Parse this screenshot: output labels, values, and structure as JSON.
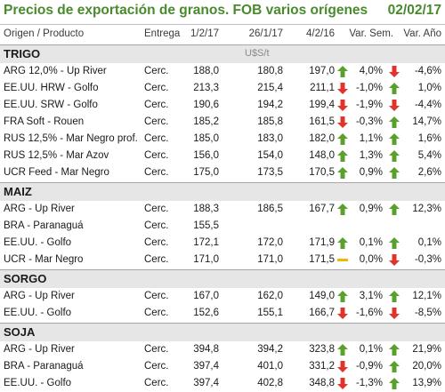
{
  "header": {
    "title": "Precios de exportación de granos. FOB varios orígenes",
    "date": "02/02/17"
  },
  "columns": {
    "product": "Origen / Producto",
    "delivery": "Entrega",
    "d1": "1/2/17",
    "d2": "26/1/17",
    "d3": "4/2/16",
    "var_sem": "Var. Sem.",
    "var_anio": "Var. Año"
  },
  "colors": {
    "title": "#4a8a2f",
    "up": "#5aa02c",
    "down": "#e0332b",
    "flat": "#f2b800",
    "section_bg": "#e6e6e6"
  },
  "sections": [
    {
      "name": "TRIGO",
      "unit": "U$S/t",
      "rows": [
        {
          "product": "ARG 12,0% - Up River",
          "delivery": "Cerc.",
          "d1": "188,0",
          "d2": "180,8",
          "d3": "197,0",
          "icon3": "up-arrow-icon",
          "var_sem": "4,0%",
          "icon4": "down-arrow-icon",
          "var_anio": "-4,6%"
        },
        {
          "product": "EE.UU. HRW - Golfo",
          "delivery": "Cerc.",
          "d1": "213,3",
          "d2": "215,4",
          "d3": "211,1",
          "icon3": "down-arrow-icon",
          "var_sem": "-1,0%",
          "icon4": "up-arrow-icon",
          "var_anio": "1,0%"
        },
        {
          "product": "EE.UU. SRW - Golfo",
          "delivery": "Cerc.",
          "d1": "190,6",
          "d2": "194,2",
          "d3": "199,4",
          "icon3": "down-arrow-icon",
          "var_sem": "-1,9%",
          "icon4": "down-arrow-icon",
          "var_anio": "-4,4%"
        },
        {
          "product": "FRA Soft - Rouen",
          "delivery": "Cerc.",
          "d1": "185,2",
          "d2": "185,8",
          "d3": "161,5",
          "icon3": "down-arrow-icon",
          "var_sem": "-0,3%",
          "icon4": "up-arrow-icon",
          "var_anio": "14,7%"
        },
        {
          "product": "RUS 12,5% - Mar Negro prof.",
          "delivery": "Cerc.",
          "d1": "185,0",
          "d2": "183,0",
          "d3": "182,0",
          "icon3": "up-arrow-icon",
          "var_sem": "1,1%",
          "icon4": "up-arrow-icon",
          "var_anio": "1,6%"
        },
        {
          "product": "RUS 12,5% - Mar Azov",
          "delivery": "Cerc.",
          "d1": "156,0",
          "d2": "154,0",
          "d3": "148,0",
          "icon3": "up-arrow-icon",
          "var_sem": "1,3%",
          "icon4": "up-arrow-icon",
          "var_anio": "5,4%"
        },
        {
          "product": "UCR Feed - Mar Negro",
          "delivery": "Cerc.",
          "d1": "175,0",
          "d2": "173,5",
          "d3": "170,5",
          "icon3": "up-arrow-icon",
          "var_sem": "0,9%",
          "icon4": "up-arrow-icon",
          "var_anio": "2,6%"
        }
      ]
    },
    {
      "name": "MAIZ",
      "unit": "",
      "rows": [
        {
          "product": "ARG - Up River",
          "delivery": "Cerc.",
          "d1": "188,3",
          "d2": "186,5",
          "d3": "167,7",
          "icon3": "up-arrow-icon",
          "var_sem": "0,9%",
          "icon4": "up-arrow-icon",
          "var_anio": "12,3%"
        },
        {
          "product": "BRA - Paranaguá",
          "delivery": "Cerc.",
          "d1": "155,5",
          "d2": "",
          "d3": "",
          "icon3": "",
          "var_sem": "",
          "icon4": "",
          "var_anio": ""
        },
        {
          "product": "EE.UU. - Golfo",
          "delivery": "Cerc.",
          "d1": "172,1",
          "d2": "172,0",
          "d3": "171,9",
          "icon3": "up-arrow-icon",
          "var_sem": "0,1%",
          "icon4": "up-arrow-icon",
          "var_anio": "0,1%"
        },
        {
          "product": "UCR - Mar Negro",
          "delivery": "Cerc.",
          "d1": "171,0",
          "d2": "171,0",
          "d3": "171,5",
          "icon3": "flat-dash-icon",
          "var_sem": "0,0%",
          "icon4": "down-arrow-icon",
          "var_anio": "-0,3%"
        }
      ]
    },
    {
      "name": "SORGO",
      "unit": "",
      "rows": [
        {
          "product": "ARG - Up River",
          "delivery": "Cerc.",
          "d1": "167,0",
          "d2": "162,0",
          "d3": "149,0",
          "icon3": "up-arrow-icon",
          "var_sem": "3,1%",
          "icon4": "up-arrow-icon",
          "var_anio": "12,1%"
        },
        {
          "product": "EE.UU. - Golfo",
          "delivery": "Cerc.",
          "d1": "152,6",
          "d2": "155,1",
          "d3": "166,7",
          "icon3": "down-arrow-icon",
          "var_sem": "-1,6%",
          "icon4": "down-arrow-icon",
          "var_anio": "-8,5%"
        }
      ]
    },
    {
      "name": "SOJA",
      "unit": "",
      "rows": [
        {
          "product": "ARG - Up River",
          "delivery": "Cerc.",
          "d1": "394,8",
          "d2": "394,2",
          "d3": "323,8",
          "icon3": "up-arrow-icon",
          "var_sem": "0,1%",
          "icon4": "up-arrow-icon",
          "var_anio": "21,9%"
        },
        {
          "product": "BRA - Paranaguá",
          "delivery": "Cerc.",
          "d1": "397,4",
          "d2": "401,0",
          "d3": "331,2",
          "icon3": "down-arrow-icon",
          "var_sem": "-0,9%",
          "icon4": "up-arrow-icon",
          "var_anio": "20,0%"
        },
        {
          "product": "EE.UU. - Golfo",
          "delivery": "Cerc.",
          "d1": "397,4",
          "d2": "402,8",
          "d3": "348,8",
          "icon3": "down-arrow-icon",
          "var_sem": "-1,3%",
          "icon4": "up-arrow-icon",
          "var_anio": "13,9%"
        }
      ]
    }
  ]
}
